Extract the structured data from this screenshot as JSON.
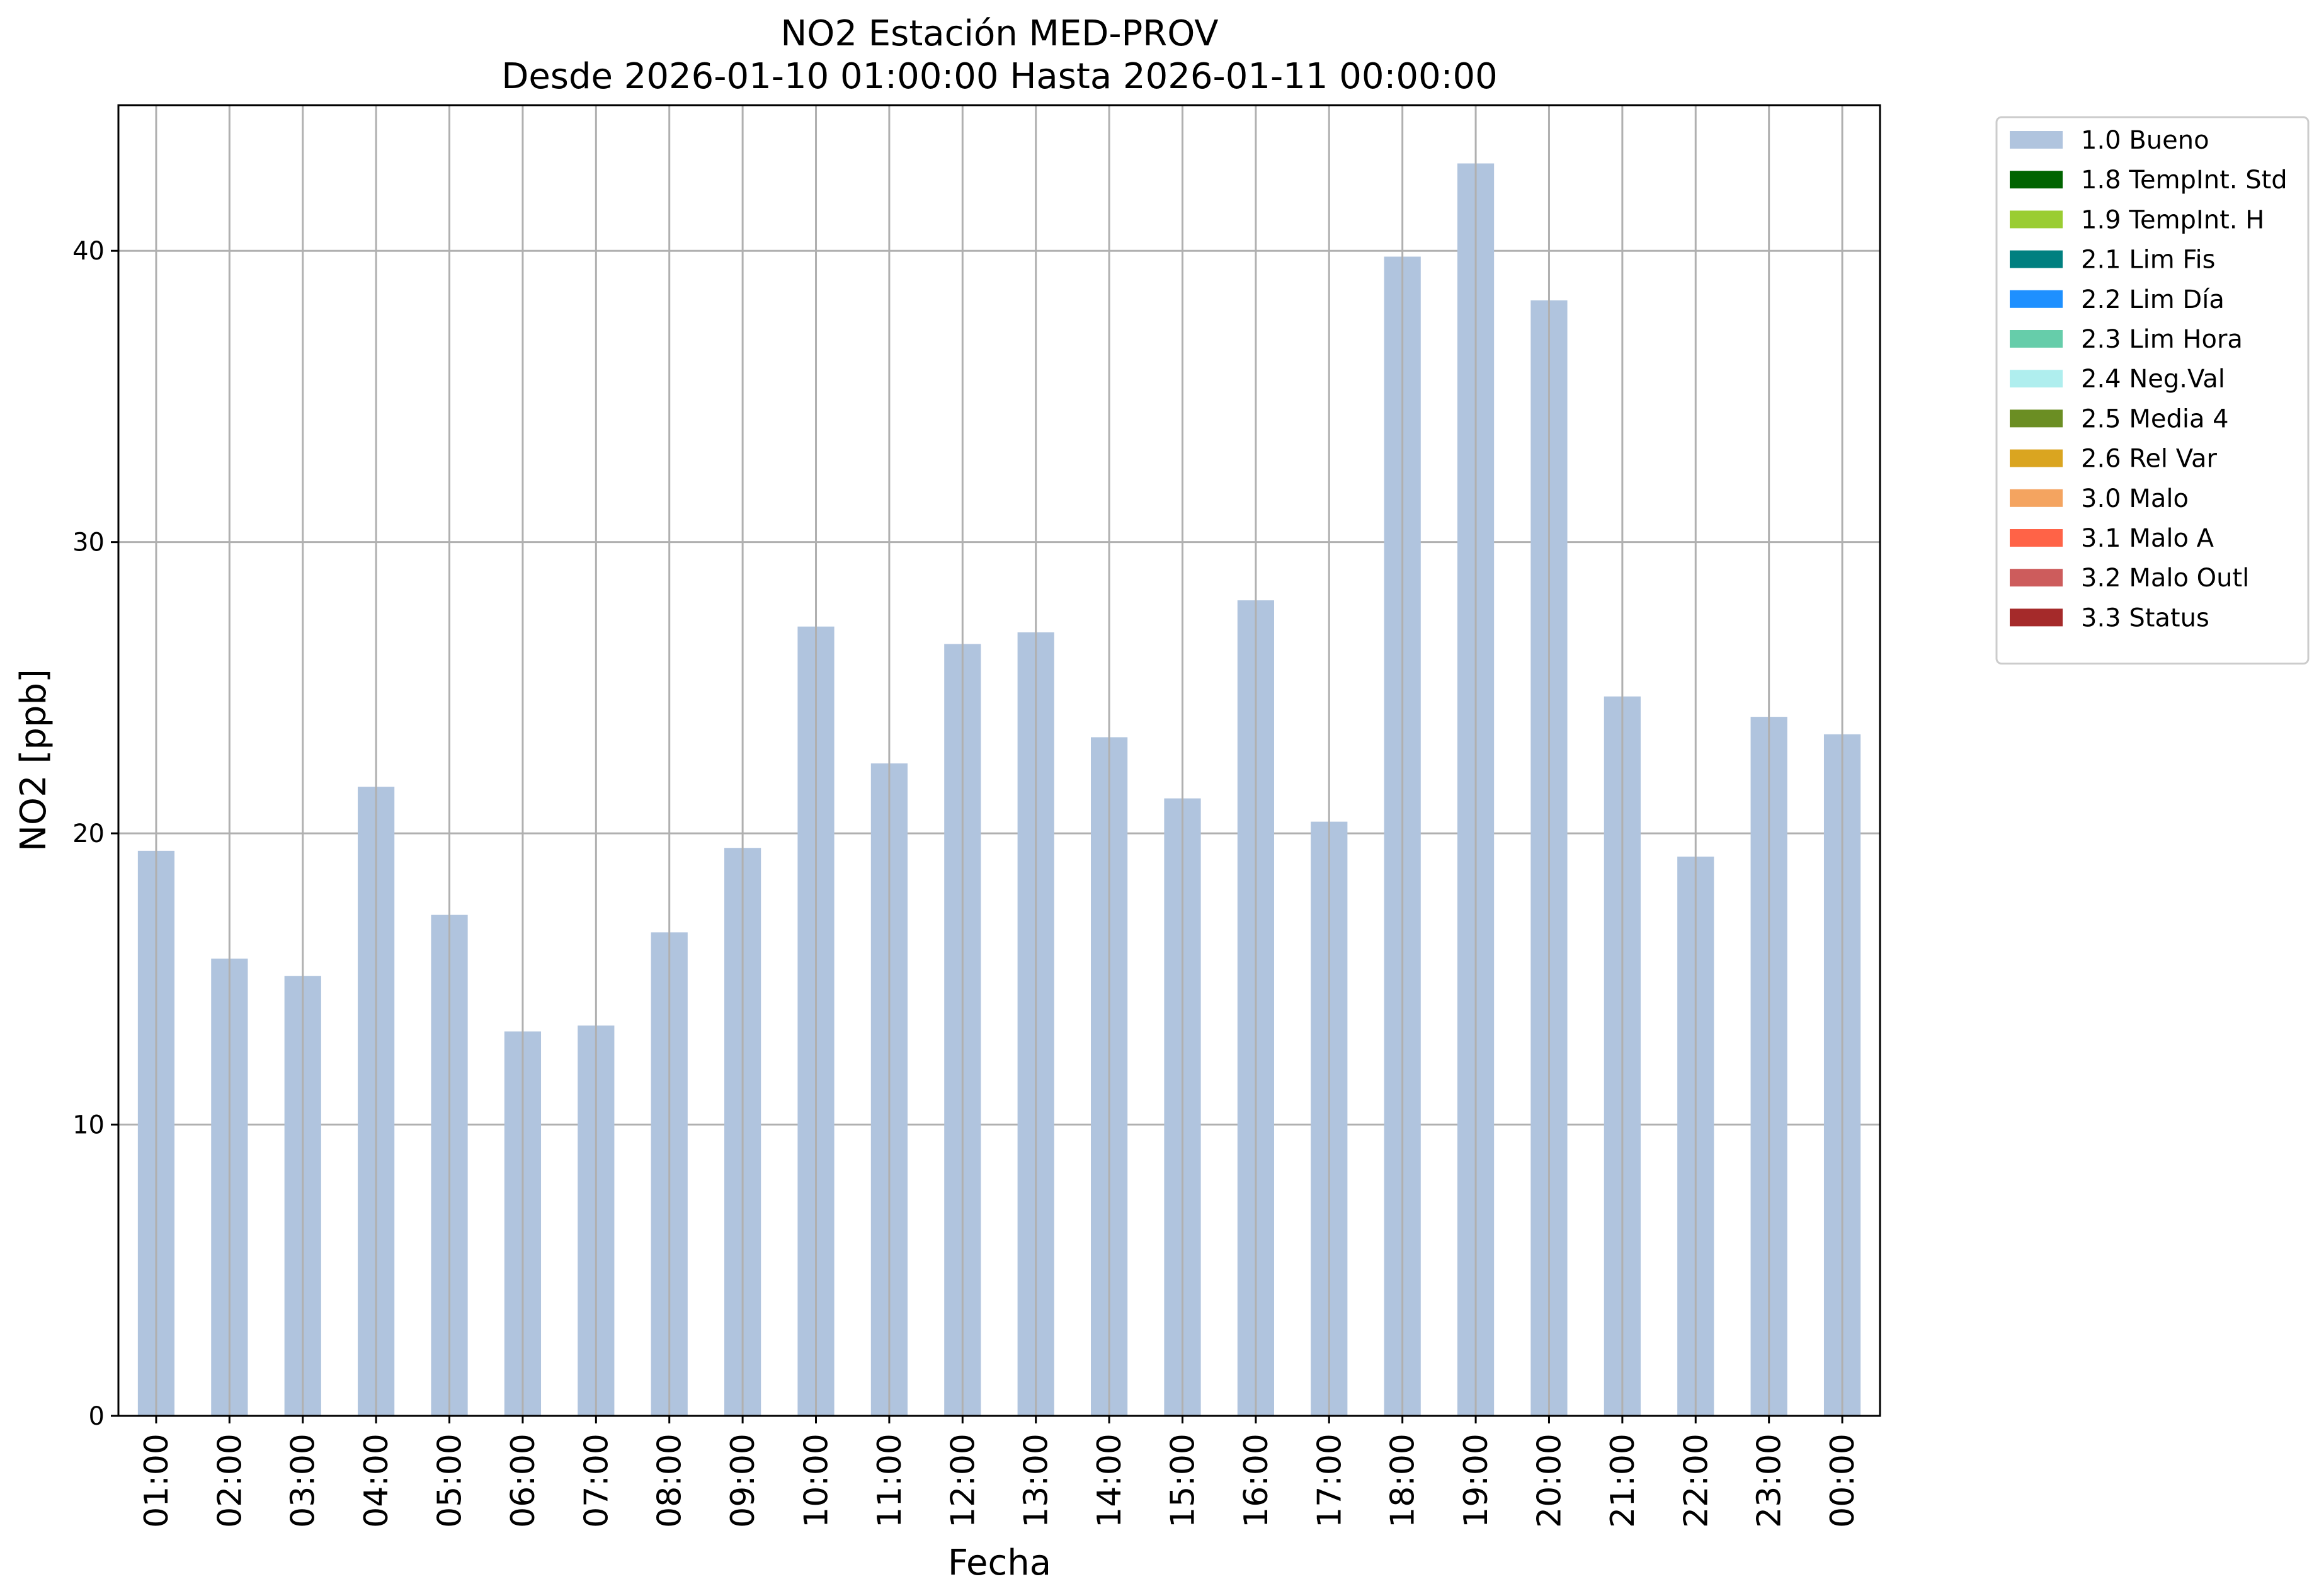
{
  "chart_data": {
    "type": "bar",
    "title": "NO2 Estación MED-PROV",
    "subtitle": "Desde 2026-01-10 01:00:00 Hasta 2026-01-11 00:00:00",
    "xlabel": "Fecha",
    "ylabel": "NO2 [ppb]",
    "ylim": [
      0,
      45
    ],
    "yticks": [
      "0",
      "10",
      "20",
      "30",
      "40"
    ],
    "grid": true,
    "legend_position": "outside-top-right",
    "categories": [
      "01:00",
      "02:00",
      "03:00",
      "04:00",
      "05:00",
      "06:00",
      "07:00",
      "08:00",
      "09:00",
      "10:00",
      "11:00",
      "12:00",
      "13:00",
      "14:00",
      "15:00",
      "16:00",
      "17:00",
      "18:00",
      "19:00",
      "20:00",
      "21:00",
      "22:00",
      "23:00",
      "00:00"
    ],
    "series": [
      {
        "name": "1.0 Bueno",
        "color": "#b0c4de",
        "values": [
          19.4,
          15.7,
          15.1,
          21.6,
          17.2,
          13.2,
          13.4,
          16.6,
          19.5,
          27.1,
          22.4,
          26.5,
          26.9,
          23.3,
          21.2,
          28.0,
          20.4,
          39.8,
          43.0,
          38.3,
          24.7,
          19.2,
          24.0,
          23.4
        ]
      }
    ],
    "legend": [
      {
        "label": "1.0 Bueno",
        "color": "#b0c4de"
      },
      {
        "label": "1.8 TempInt. Std",
        "color": "#006400"
      },
      {
        "label": "1.9 TempInt. H",
        "color": "#9acd32"
      },
      {
        "label": "2.1 Lim Fis",
        "color": "#008080"
      },
      {
        "label": "2.2 Lim Día",
        "color": "#1e90ff"
      },
      {
        "label": "2.3 Lim Hora",
        "color": "#66cdaa"
      },
      {
        "label": "2.4 Neg.Val",
        "color": "#afeeee"
      },
      {
        "label": "2.5 Media 4",
        "color": "#6b8e23"
      },
      {
        "label": "2.6 Rel Var",
        "color": "#daa520"
      },
      {
        "label": "3.0 Malo",
        "color": "#f4a460"
      },
      {
        "label": "3.1 Malo A",
        "color": "#ff6347"
      },
      {
        "label": "3.2 Malo Outl",
        "color": "#cd5c5c"
      },
      {
        "label": "3.3 Status",
        "color": "#a52a2a"
      }
    ]
  }
}
